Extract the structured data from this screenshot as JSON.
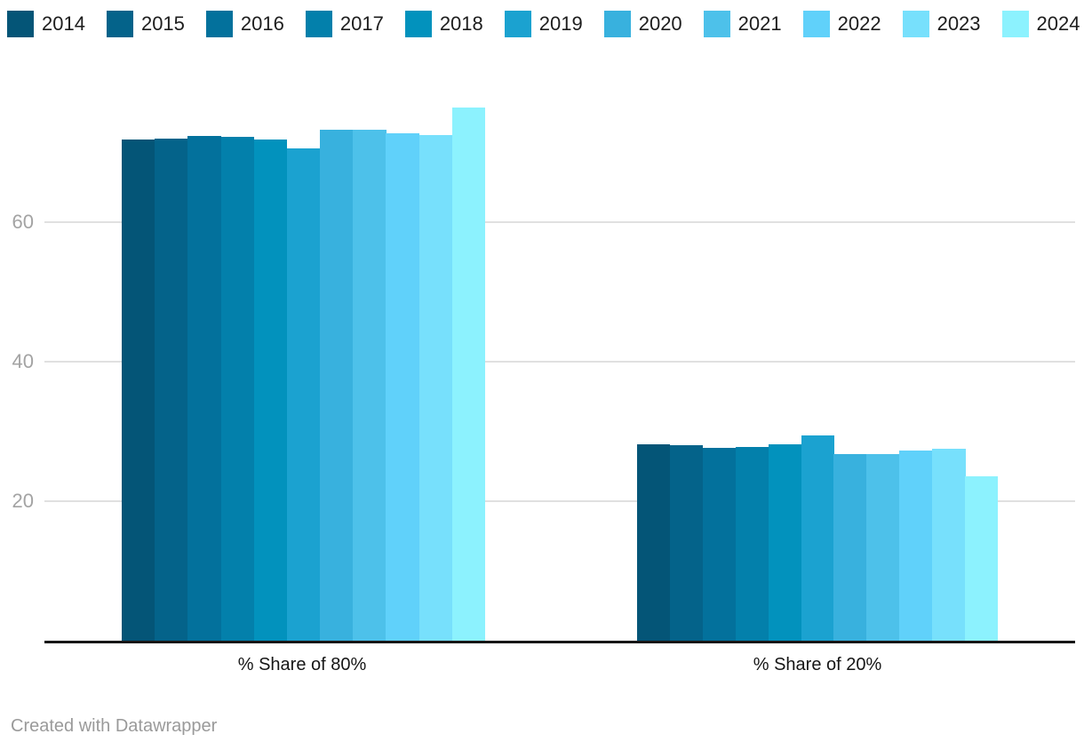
{
  "chart_data": {
    "type": "bar",
    "title": "",
    "xlabel": "",
    "ylabel": "",
    "categories": [
      "% Share of 80%",
      "% Share of 20%"
    ],
    "series": [
      {
        "name": "2014",
        "color": "#045577",
        "values": [
          71.9,
          28.1
        ]
      },
      {
        "name": "2015",
        "color": "#04638a",
        "values": [
          72.0,
          28.0
        ]
      },
      {
        "name": "2016",
        "color": "#03719c",
        "values": [
          72.3,
          27.7
        ]
      },
      {
        "name": "2017",
        "color": "#0380ab",
        "values": [
          72.2,
          27.8
        ]
      },
      {
        "name": "2018",
        "color": "#0292bd",
        "values": [
          71.9,
          28.1
        ]
      },
      {
        "name": "2019",
        "color": "#1ba2d0",
        "values": [
          70.6,
          29.4
        ]
      },
      {
        "name": "2020",
        "color": "#38b1de",
        "values": [
          73.2,
          26.8
        ]
      },
      {
        "name": "2021",
        "color": "#4dc1ea",
        "values": [
          73.3,
          26.7
        ]
      },
      {
        "name": "2022",
        "color": "#60d1fa",
        "values": [
          72.7,
          27.3
        ]
      },
      {
        "name": "2023",
        "color": "#77e0fc",
        "values": [
          72.5,
          27.5
        ]
      },
      {
        "name": "2024",
        "color": "#8cf2fe",
        "values": [
          76.4,
          23.6
        ]
      }
    ],
    "ylim": [
      0,
      80
    ],
    "yticks": [
      20,
      40,
      60
    ],
    "grid": "horizontal",
    "legend_position": "top",
    "gridline_color": "#e0e0e0",
    "tick_label_color": "#a3a3a3",
    "axis_line_color": "#161616"
  },
  "footer": {
    "text": "Created with Datawrapper"
  }
}
